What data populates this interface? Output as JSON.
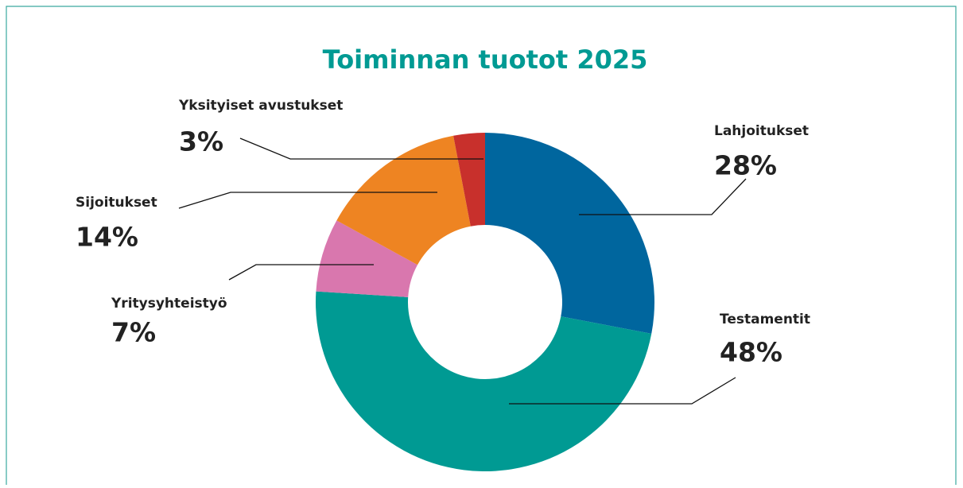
{
  "chart_data": {
    "type": "donut",
    "title": "Toiminnan tuotot 2025",
    "categories": [
      "Lahjoitukset",
      "Testamentit",
      "Yritysyhteistyö",
      "Sijoitukset",
      "Yksityiset avustukset"
    ],
    "values": [
      28,
      48,
      7,
      14,
      3
    ],
    "value_labels": [
      "28%",
      "48%",
      "7%",
      "14%",
      "3%"
    ],
    "colors": [
      "#00669e",
      "#009a93",
      "#d977ae",
      "#ee8422",
      "#c8302c"
    ]
  }
}
